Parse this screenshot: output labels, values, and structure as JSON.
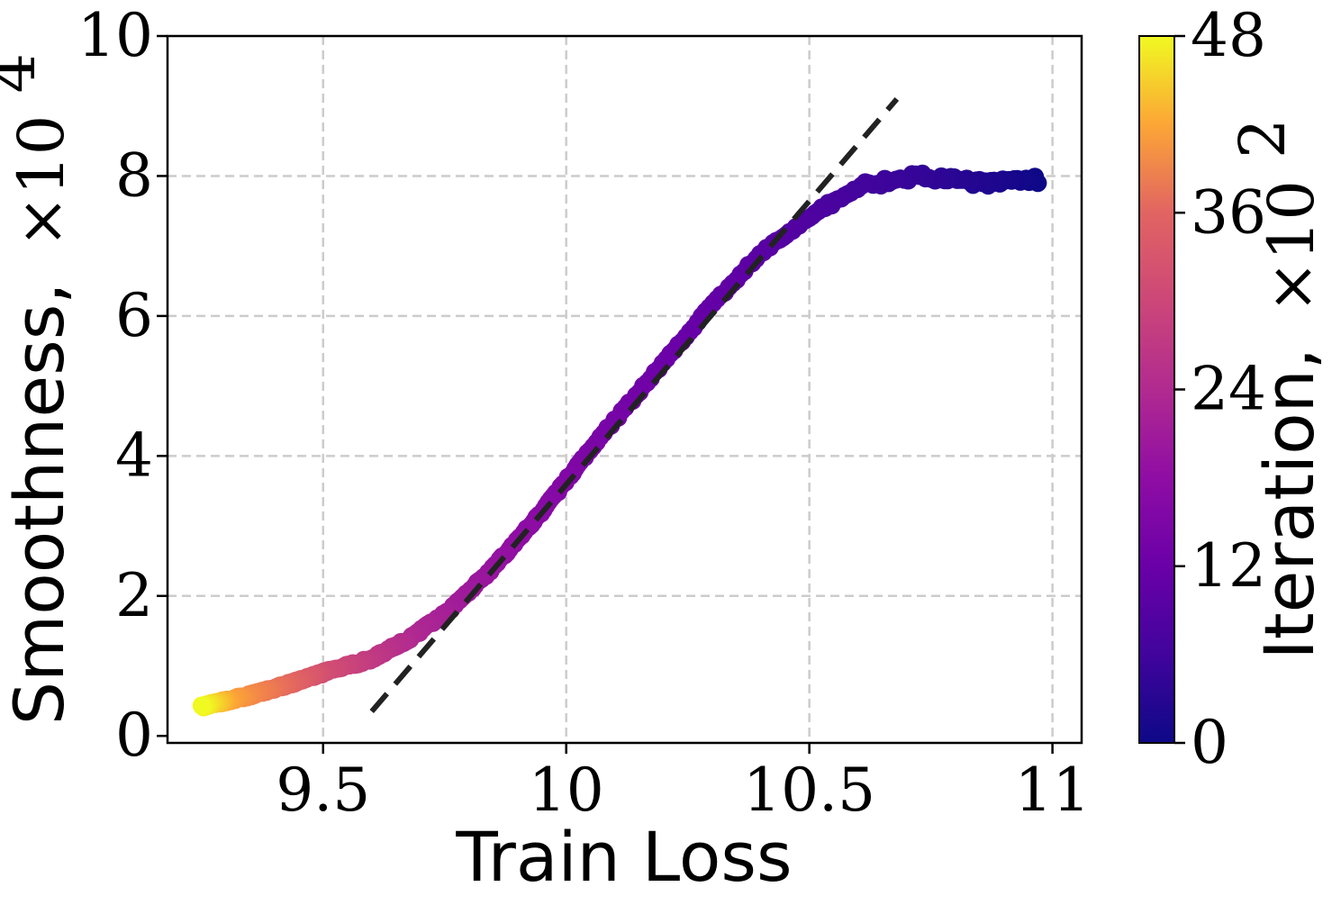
{
  "chart_data": {
    "type": "scatter",
    "xlabel": "Train Loss",
    "ylabel": "Smoothness,",
    "ylabel_multiplier": "×10",
    "ylabel_exponent": "4",
    "xlim": [
      9.18,
      11.06
    ],
    "ylim": [
      -0.1,
      10
    ],
    "x_ticks": [
      9.5,
      10,
      10.5,
      11
    ],
    "x_tick_labels": [
      "9.5",
      "10",
      "10.5",
      "11"
    ],
    "y_ticks": [
      0,
      2,
      4,
      6,
      8,
      10
    ],
    "y_tick_labels": [
      "0",
      "2",
      "4",
      "6",
      "8",
      "10"
    ],
    "grid": true,
    "colormap": "plasma",
    "colorbar": {
      "label": "Iteration,",
      "multiplier": "×10",
      "exponent": "2",
      "range": [
        0,
        48
      ],
      "ticks": [
        0,
        12,
        24,
        36,
        48
      ],
      "tick_labels": [
        "0",
        "12",
        "24",
        "36",
        "48"
      ]
    },
    "trajectory_keypoints": [
      {
        "iteration": 0,
        "x": 10.97,
        "y": 7.95
      },
      {
        "iteration": 2,
        "x": 10.85,
        "y": 7.9
      },
      {
        "iteration": 4,
        "x": 10.72,
        "y": 8.0
      },
      {
        "iteration": 5.5,
        "x": 10.6,
        "y": 7.85
      },
      {
        "iteration": 7,
        "x": 10.5,
        "y": 7.4
      },
      {
        "iteration": 8.5,
        "x": 10.4,
        "y": 6.9
      },
      {
        "iteration": 10,
        "x": 10.28,
        "y": 6.0
      },
      {
        "iteration": 11.5,
        "x": 10.16,
        "y": 5.0
      },
      {
        "iteration": 13,
        "x": 10.05,
        "y": 4.1
      },
      {
        "iteration": 15,
        "x": 9.95,
        "y": 3.2
      },
      {
        "iteration": 17,
        "x": 9.85,
        "y": 2.4
      },
      {
        "iteration": 19,
        "x": 9.76,
        "y": 1.8
      },
      {
        "iteration": 21,
        "x": 9.68,
        "y": 1.4
      },
      {
        "iteration": 24,
        "x": 9.6,
        "y": 1.1
      },
      {
        "iteration": 28,
        "x": 9.5,
        "y": 0.9
      },
      {
        "iteration": 33,
        "x": 9.42,
        "y": 0.72
      },
      {
        "iteration": 38,
        "x": 9.35,
        "y": 0.58
      },
      {
        "iteration": 43,
        "x": 9.3,
        "y": 0.5
      },
      {
        "iteration": 48,
        "x": 9.25,
        "y": 0.42
      }
    ],
    "fit_line": {
      "style": "dashed",
      "color": "#222222",
      "x": [
        9.6,
        10.68
      ],
      "y": [
        0.35,
        9.1
      ]
    }
  }
}
